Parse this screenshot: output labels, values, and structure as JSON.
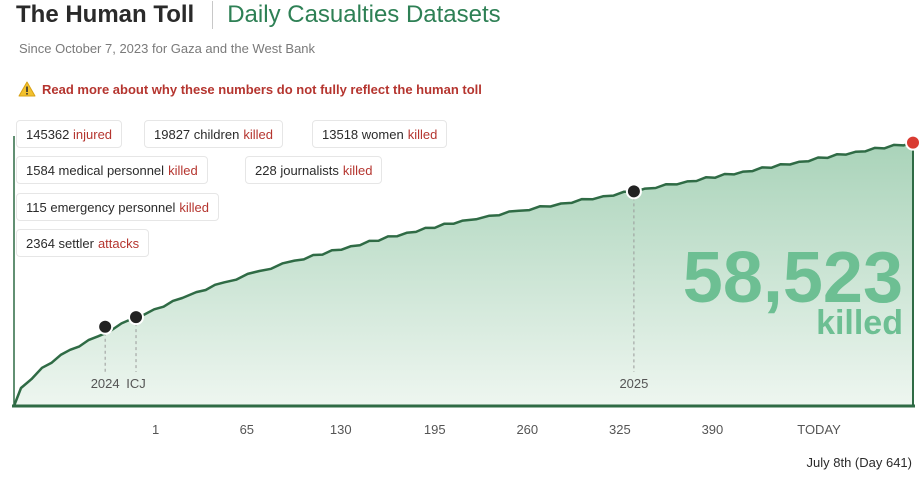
{
  "header": {
    "title": "The Human Toll",
    "subtitle": "Daily Casualties Datasets",
    "since": "Since October 7, 2023 for Gaza and the West Bank"
  },
  "warning": {
    "icon": "warning-icon",
    "text": "Read more about why these numbers do not fully reflect the human toll"
  },
  "stats": [
    {
      "value": "145362",
      "label": "injured",
      "highlight": ""
    },
    {
      "value": "19827",
      "label": "children",
      "highlight": "killed"
    },
    {
      "value": "13518",
      "label": "women",
      "highlight": "killed"
    },
    {
      "value": "1584",
      "label": "medical personnel",
      "highlight": "killed"
    },
    {
      "value": "228",
      "label": "journalists",
      "highlight": "killed"
    },
    {
      "value": "115",
      "label": "emergency personnel",
      "highlight": "killed"
    },
    {
      "value": "2364",
      "label": "settler",
      "highlight": "attacks"
    }
  ],
  "headline": {
    "value": "58,523",
    "unit": "killed"
  },
  "footnote": "July 8th (Day 641)",
  "colors": {
    "line": "#2f6b45",
    "fill_top": "#a9d3b9",
    "fill_bottom": "#eef6f0",
    "accent": "#b5352f",
    "headline": "#6dbf93"
  },
  "chart_data": {
    "type": "area",
    "x": [
      0,
      5,
      20,
      40,
      60,
      85,
      100,
      120,
      130,
      150,
      175,
      200,
      240,
      280,
      320,
      339,
      360,
      390,
      420,
      450,
      480,
      520,
      560,
      600,
      641
    ],
    "y": [
      0,
      4000,
      8500,
      12500,
      15500,
      19500,
      21500,
      24000,
      25300,
      27500,
      30000,
      32300,
      35500,
      38500,
      41200,
      42300,
      43400,
      45000,
      46600,
      48300,
      49900,
      52100,
      54300,
      56500,
      58523
    ],
    "ylim": [
      0,
      60000
    ],
    "xlim": [
      0,
      641
    ],
    "x_ticks": [
      {
        "x": 101,
        "label": "1"
      },
      {
        "x": 166,
        "label": "65"
      },
      {
        "x": 233,
        "label": "130"
      },
      {
        "x": 300,
        "label": "195"
      },
      {
        "x": 366,
        "label": "260"
      },
      {
        "x": 432,
        "label": "325"
      },
      {
        "x": 498,
        "label": "390"
      },
      {
        "x": 574,
        "label": "TODAY"
      }
    ],
    "markers": [
      {
        "x": 65,
        "y": 17600,
        "label": "2024"
      },
      {
        "x": 87,
        "y": 19750,
        "label": "ICJ"
      },
      {
        "x": 442,
        "y": 47700,
        "label": "2025"
      }
    ],
    "latest": {
      "x": 641,
      "y": 58523
    },
    "grid": false
  }
}
